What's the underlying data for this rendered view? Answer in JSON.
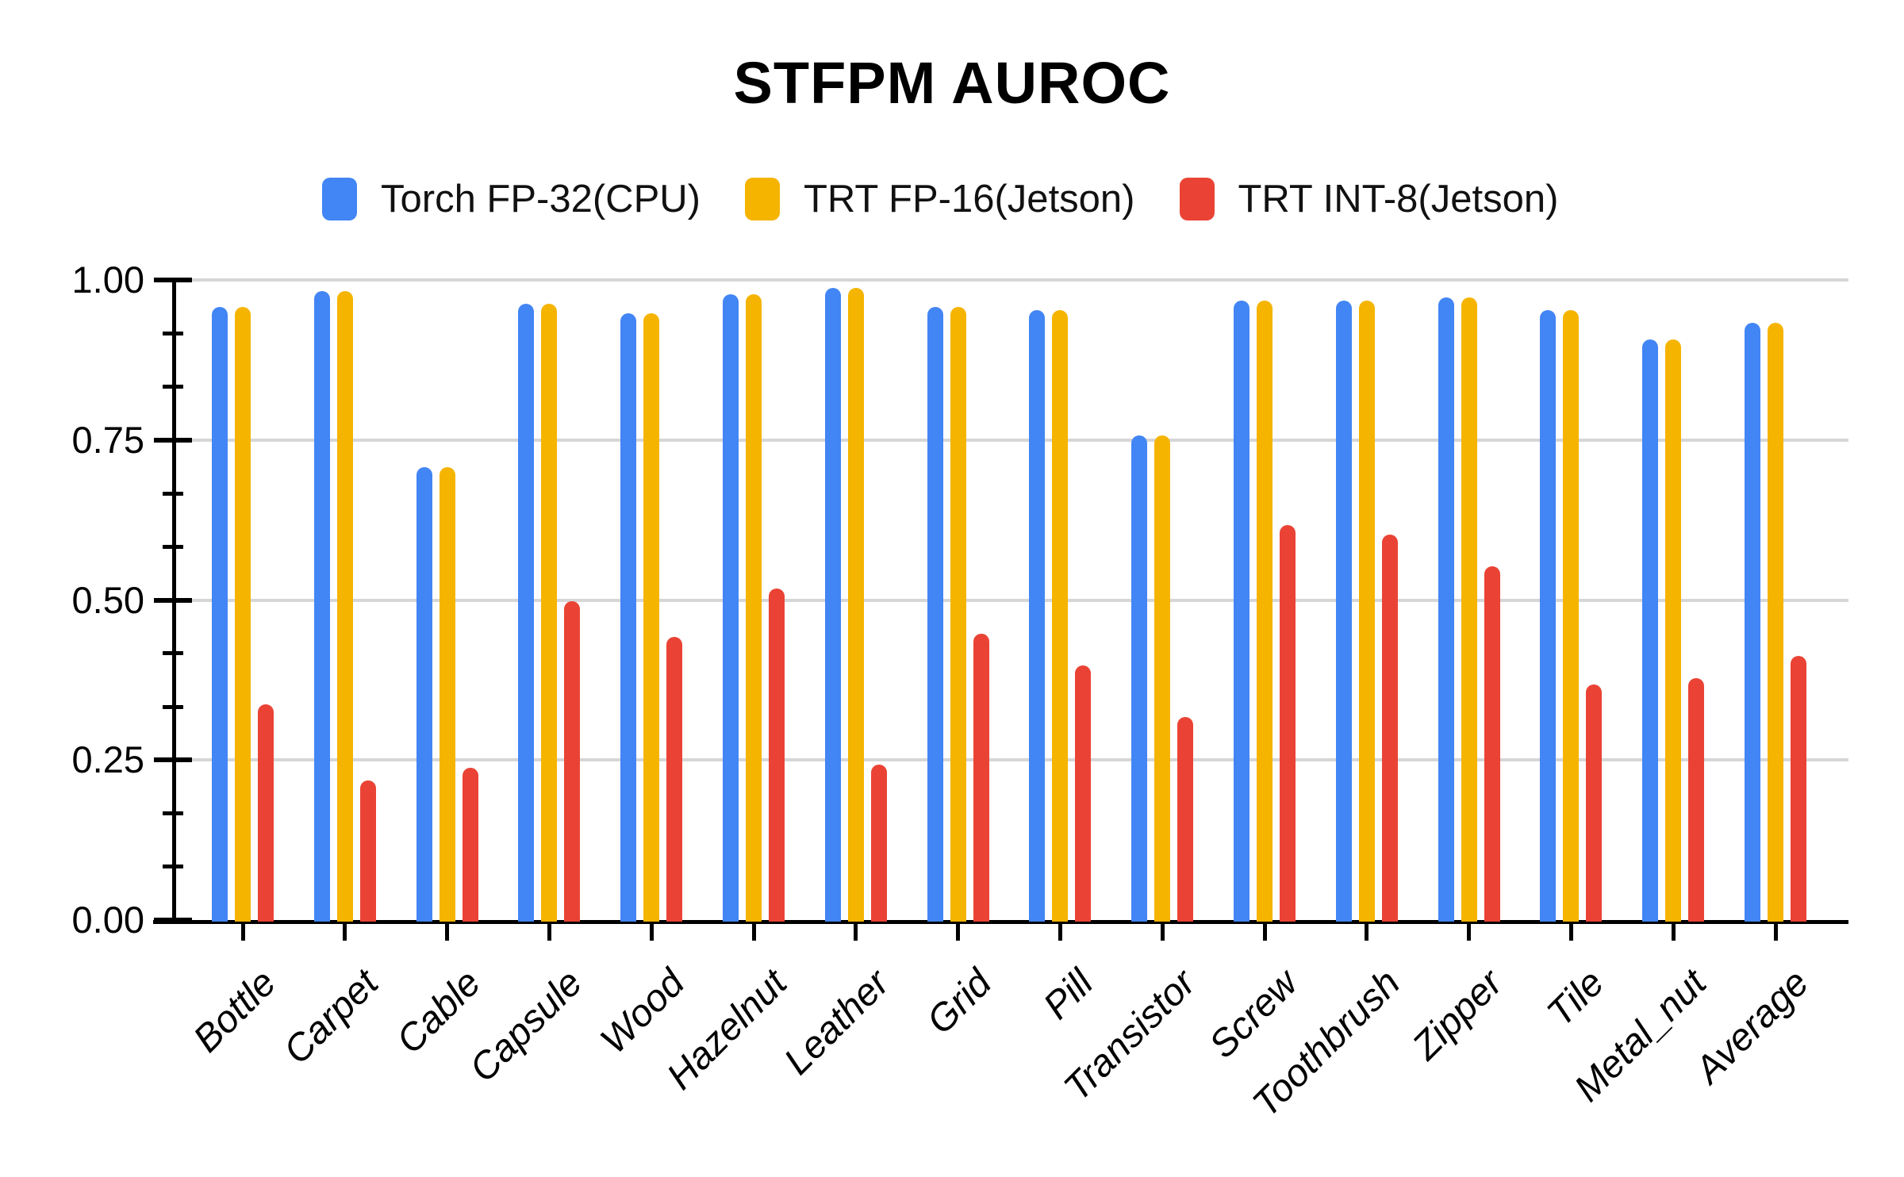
{
  "title": "STFPM AUROC",
  "legend": {
    "items": [
      {
        "label": "Torch FP-32(CPU)",
        "color": "#4285F4"
      },
      {
        "label": "TRT FP-16(Jetson)",
        "color": "#F5B400"
      },
      {
        "label": "TRT INT-8(Jetson)",
        "color": "#EA4335"
      }
    ]
  },
  "chart_data": {
    "type": "bar",
    "title": "STFPM AUROC",
    "categories": [
      "Bottle",
      "Carpet",
      "Cable",
      "Capsule",
      "Wood",
      "Hazelnut",
      "Leather",
      "Grid",
      "Pill",
      "Transistor",
      "Screw",
      "Toothbrush",
      "Zipper",
      "Tile",
      "Metal_nut",
      "Average"
    ],
    "series": [
      {
        "name": "Torch FP-32(CPU)",
        "color": "#4285F4",
        "values": [
          0.96,
          0.985,
          0.71,
          0.965,
          0.95,
          0.98,
          0.99,
          0.96,
          0.955,
          0.76,
          0.97,
          0.97,
          0.975,
          0.955,
          0.91,
          0.935
        ]
      },
      {
        "name": "TRT FP-16(Jetson)",
        "color": "#F5B400",
        "values": [
          0.96,
          0.985,
          0.71,
          0.965,
          0.95,
          0.98,
          0.99,
          0.96,
          0.955,
          0.76,
          0.97,
          0.97,
          0.975,
          0.955,
          0.91,
          0.935
        ]
      },
      {
        "name": "TRT INT-8(Jetson)",
        "color": "#EA4335",
        "values": [
          0.34,
          0.22,
          0.24,
          0.5,
          0.445,
          0.52,
          0.245,
          0.45,
          0.4,
          0.32,
          0.62,
          0.605,
          0.555,
          0.37,
          0.38,
          0.415
        ]
      }
    ],
    "xlabel": "",
    "ylabel": "",
    "ylim": [
      0,
      1
    ],
    "y_tick_labels": [
      "1.00",
      "0.75",
      "0.50",
      "0.25",
      "0.00"
    ],
    "y_major_step": 0.25,
    "y_minor_divisions_per_major": 3,
    "grid": true,
    "legend_position": "top"
  }
}
